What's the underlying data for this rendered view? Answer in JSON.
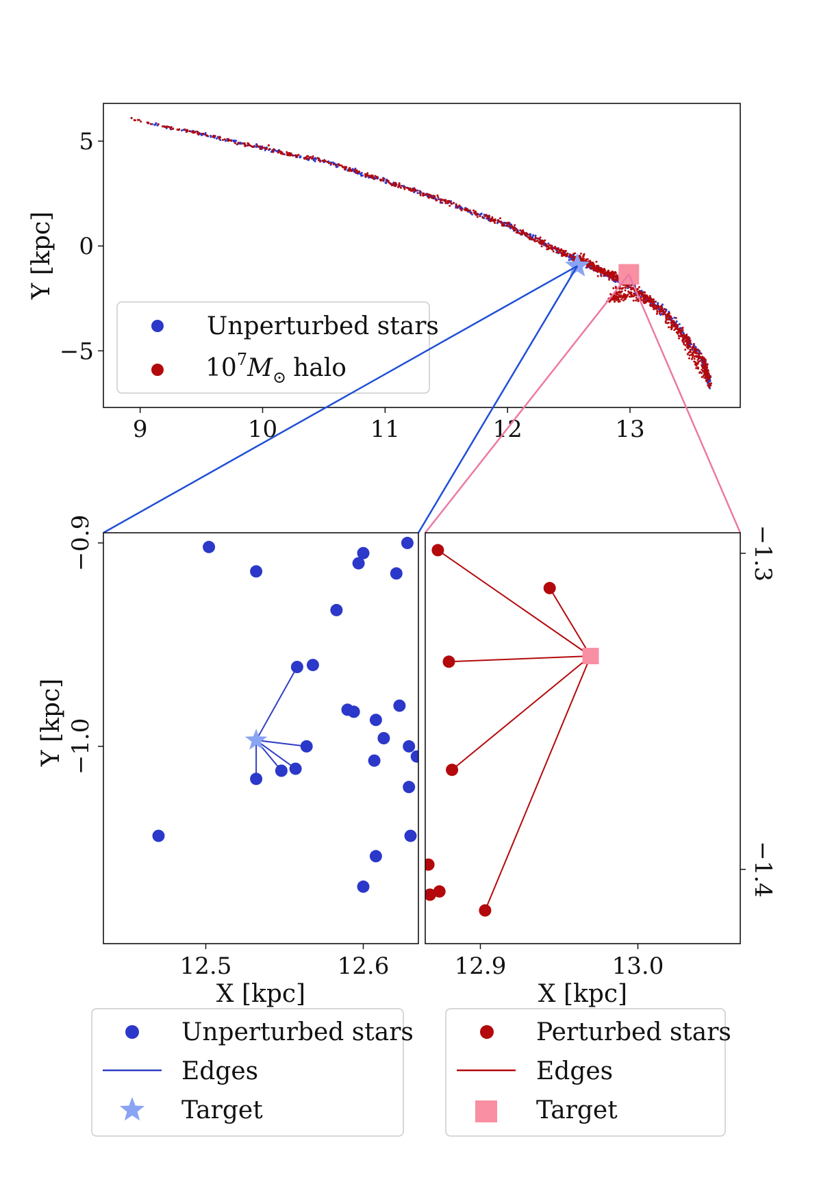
{
  "colors": {
    "unperturbed": "#2b38c9",
    "perturbed": "#b3090c",
    "blue_edge": "#2f3ec4",
    "red_edge": "#b3090c",
    "star_target": "#8aa4f4",
    "square_target": "#f98fa2",
    "connector_blue": "#1f4fd6",
    "connector_pink": "#ec79a5"
  },
  "chart_data": [
    {
      "id": "overview",
      "type": "scatter",
      "xlabel": "",
      "ylabel": "Y [kpc]",
      "xlim": [
        8.7,
        13.9
      ],
      "ylim": [
        -7.7,
        6.8
      ],
      "xticks": [
        9,
        10,
        11,
        12,
        13
      ],
      "xtick_labels": [
        "9",
        "10",
        "11",
        "12",
        "13"
      ],
      "yticks": [
        5,
        0,
        -5
      ],
      "ytick_labels": [
        "5",
        "0",
        "−5"
      ],
      "stream_path": [
        [
          8.95,
          6.0
        ],
        [
          9.5,
          5.35
        ],
        [
          10.0,
          4.65
        ],
        [
          10.5,
          4.05
        ],
        [
          11.0,
          3.1
        ],
        [
          11.5,
          2.1
        ],
        [
          12.0,
          1.0
        ],
        [
          12.4,
          -0.2
        ],
        [
          12.7,
          -1.0
        ],
        [
          13.0,
          -1.85
        ],
        [
          13.3,
          -3.2
        ],
        [
          13.6,
          -5.5
        ],
        [
          13.65,
          -6.6
        ]
      ],
      "red_branch_path": [
        [
          12.55,
          -0.3
        ],
        [
          12.75,
          -1.2
        ],
        [
          13.0,
          -1.5
        ],
        [
          12.85,
          -2.55
        ],
        [
          13.0,
          -2.3
        ],
        [
          13.2,
          -2.8
        ],
        [
          13.45,
          -4.5
        ],
        [
          13.6,
          -6.2
        ]
      ],
      "targets": {
        "star": [
          12.57,
          -0.95
        ],
        "square": [
          12.99,
          -1.35
        ]
      },
      "legend": {
        "location": "lower-left",
        "entries": [
          {
            "label": "Unperturbed stars",
            "marker": "circle",
            "color": "#2b38c9"
          },
          {
            "label": "halo",
            "label_math": "10",
            "label_sup": "7",
            "label_M": "M",
            "label_sub": "⊙",
            "marker": "circle",
            "color": "#b3090c"
          }
        ]
      }
    },
    {
      "id": "zoom-left",
      "type": "scatter",
      "xlabel": "X [kpc]",
      "ylabel": "Y [kpc]",
      "xlim": [
        12.435,
        12.635
      ],
      "ylim": [
        -1.097,
        -0.895
      ],
      "xticks": [
        12.5,
        12.6
      ],
      "xtick_labels": [
        "12.5",
        "12.6"
      ],
      "yticks": [
        -0.9,
        -1.0
      ],
      "ytick_labels": [
        "−0.9",
        "−1.0"
      ],
      "target": [
        12.532,
        -0.997
      ],
      "points": [
        [
          12.502,
          -0.902
        ],
        [
          12.532,
          -0.914
        ],
        [
          12.583,
          -0.933
        ],
        [
          12.597,
          -0.91
        ],
        [
          12.6,
          -0.905
        ],
        [
          12.621,
          -0.915
        ],
        [
          12.628,
          -0.9
        ],
        [
          12.558,
          -0.961
        ],
        [
          12.568,
          -0.96
        ],
        [
          12.623,
          -0.98
        ],
        [
          12.59,
          -0.982
        ],
        [
          12.594,
          -0.983
        ],
        [
          12.608,
          -0.987
        ],
        [
          12.613,
          -0.996
        ],
        [
          12.564,
          -1.0
        ],
        [
          12.629,
          -1.0
        ],
        [
          12.634,
          -1.005
        ],
        [
          12.607,
          -1.007
        ],
        [
          12.548,
          -1.012
        ],
        [
          12.557,
          -1.011
        ],
        [
          12.532,
          -1.016
        ],
        [
          12.629,
          -1.02
        ],
        [
          12.47,
          -1.044
        ],
        [
          12.63,
          -1.044
        ],
        [
          12.608,
          -1.054
        ],
        [
          12.6,
          -1.069
        ]
      ],
      "edges_to": [
        [
          12.558,
          -0.961
        ],
        [
          12.564,
          -1.0
        ],
        [
          12.548,
          -1.012
        ],
        [
          12.557,
          -1.011
        ],
        [
          12.532,
          -1.016
        ]
      ]
    },
    {
      "id": "zoom-right",
      "type": "scatter",
      "xlabel": "X [kpc]",
      "ylabel": "",
      "xlim": [
        12.865,
        13.065
      ],
      "ylim": [
        -1.4235,
        -1.2935
      ],
      "xticks": [
        12.9,
        13.0
      ],
      "xtick_labels": [
        "12.9",
        "13.0"
      ],
      "yticks": [
        -1.3,
        -1.4
      ],
      "ytick_labels": [
        "−1.3",
        "−1.4"
      ],
      "target": [
        12.97,
        -1.3325
      ],
      "points": [
        [
          12.873,
          -1.299
        ],
        [
          12.944,
          -1.311
        ],
        [
          12.88,
          -1.3343
        ],
        [
          12.882,
          -1.3685
        ],
        [
          12.903,
          -1.413
        ],
        [
          12.867,
          -1.3985
        ],
        [
          12.868,
          -1.408
        ],
        [
          12.874,
          -1.407
        ]
      ],
      "edges_to": [
        [
          12.873,
          -1.299
        ],
        [
          12.944,
          -1.311
        ],
        [
          12.88,
          -1.3343
        ],
        [
          12.882,
          -1.3685
        ],
        [
          12.903,
          -1.413
        ]
      ]
    }
  ],
  "legend_left": {
    "entries": [
      {
        "label": "Unperturbed stars",
        "marker": "circle",
        "color": "#2b38c9"
      },
      {
        "label": "Edges",
        "marker": "line",
        "color": "#2f3ec4"
      },
      {
        "label": "Target",
        "marker": "star",
        "color": "#8aa4f4"
      }
    ]
  },
  "legend_right": {
    "entries": [
      {
        "label": "Perturbed stars",
        "marker": "circle",
        "color": "#b3090c"
      },
      {
        "label": "Edges",
        "marker": "line",
        "color": "#b3090c"
      },
      {
        "label": "Target",
        "marker": "square",
        "color": "#f98fa2"
      }
    ]
  }
}
